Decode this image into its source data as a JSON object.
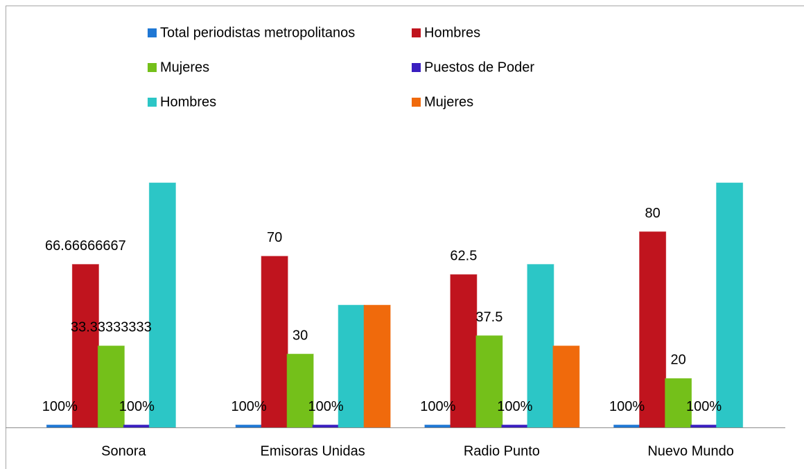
{
  "chart_data": {
    "type": "bar",
    "categories": [
      "Sonora",
      "Emisoras Unidas",
      "Radio Punto",
      "Nuevo Mundo"
    ],
    "series": [
      {
        "name": "Total periodistas metropolitanos",
        "color": "#1f77d4",
        "values": [
          1,
          1,
          1,
          1
        ],
        "value_labels": [
          "100%",
          "100%",
          "100%",
          "100%"
        ]
      },
      {
        "name": "Hombres",
        "color": "#c0141e",
        "values": [
          66.66666667,
          70,
          62.5,
          80
        ]
      },
      {
        "name": "Mujeres",
        "color": "#74c01a",
        "values": [
          33.33333333,
          30,
          37.5,
          20
        ]
      },
      {
        "name": "Puestos de Poder",
        "color": "#3a1fc0",
        "values": [
          1,
          1,
          1,
          1
        ],
        "value_labels": [
          "100%",
          "100%",
          "100%",
          "100%"
        ]
      },
      {
        "name": "Hombres",
        "color": "#2cc6c6",
        "values": [
          100,
          50,
          66.67,
          100
        ]
      },
      {
        "name": "Mujeres",
        "color": "#f06a0c",
        "values": [
          null,
          50,
          33.33,
          null
        ]
      }
    ],
    "ylim": [
      0,
      100
    ]
  }
}
